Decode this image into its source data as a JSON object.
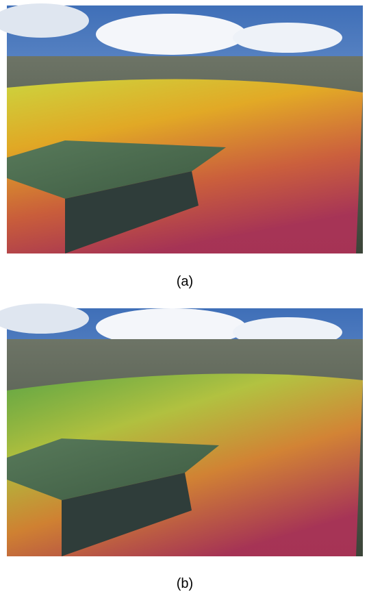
{
  "figures": [
    {
      "caption": "(a)"
    },
    {
      "caption": "(b)"
    }
  ]
}
